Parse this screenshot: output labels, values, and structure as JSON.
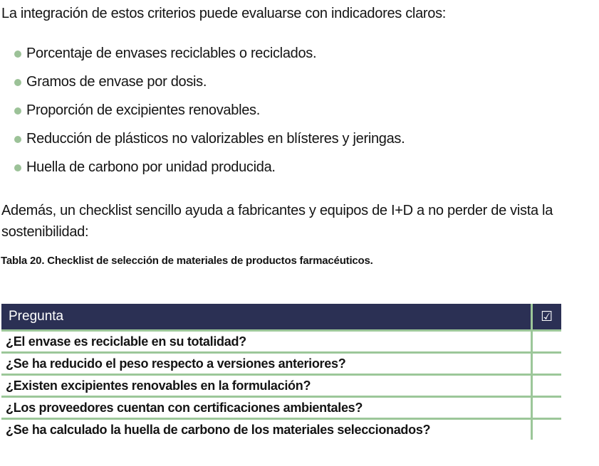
{
  "page": {
    "intro": "La integración de estos criterios puede evaluarse con indicadores claros:",
    "indicators": [
      "Porcentaje de envases reciclables o reciclados.",
      "Gramos de envase por dosis.",
      "Proporción de excipientes renovables.",
      "Reducción de plásticos no valorizables en blísteres y jeringas.",
      "Huella de carbono por unidad producida."
    ],
    "checklist_intro": "Además, un checklist sencillo ayuda a fabricantes y equipos de I+D a no perder de vista la sostenibilidad:",
    "table_caption": "Tabla 20. Checklist de selección de materiales de productos farmacéuticos."
  },
  "table": {
    "header": {
      "question_label": "Pregunta",
      "check_symbol": "☑"
    },
    "rows": [
      {
        "question": "¿El envase es reciclable en su totalidad?",
        "check": ""
      },
      {
        "question": "¿Se ha reducido el peso respecto a versiones anteriores?",
        "check": ""
      },
      {
        "question": "¿Existen excipientes renovables en la formulación?",
        "check": ""
      },
      {
        "question": "¿Los proveedores cuentan con certificaciones ambientales?",
        "check": ""
      },
      {
        "question": "¿Se ha calculado la huella de carbono de los materiales seleccionados?",
        "check": ""
      }
    ]
  },
  "colors": {
    "header_bg": "#2b3054",
    "grid_green": "#9cc799",
    "bullet_green": "#9cc298",
    "text": "#141414"
  }
}
